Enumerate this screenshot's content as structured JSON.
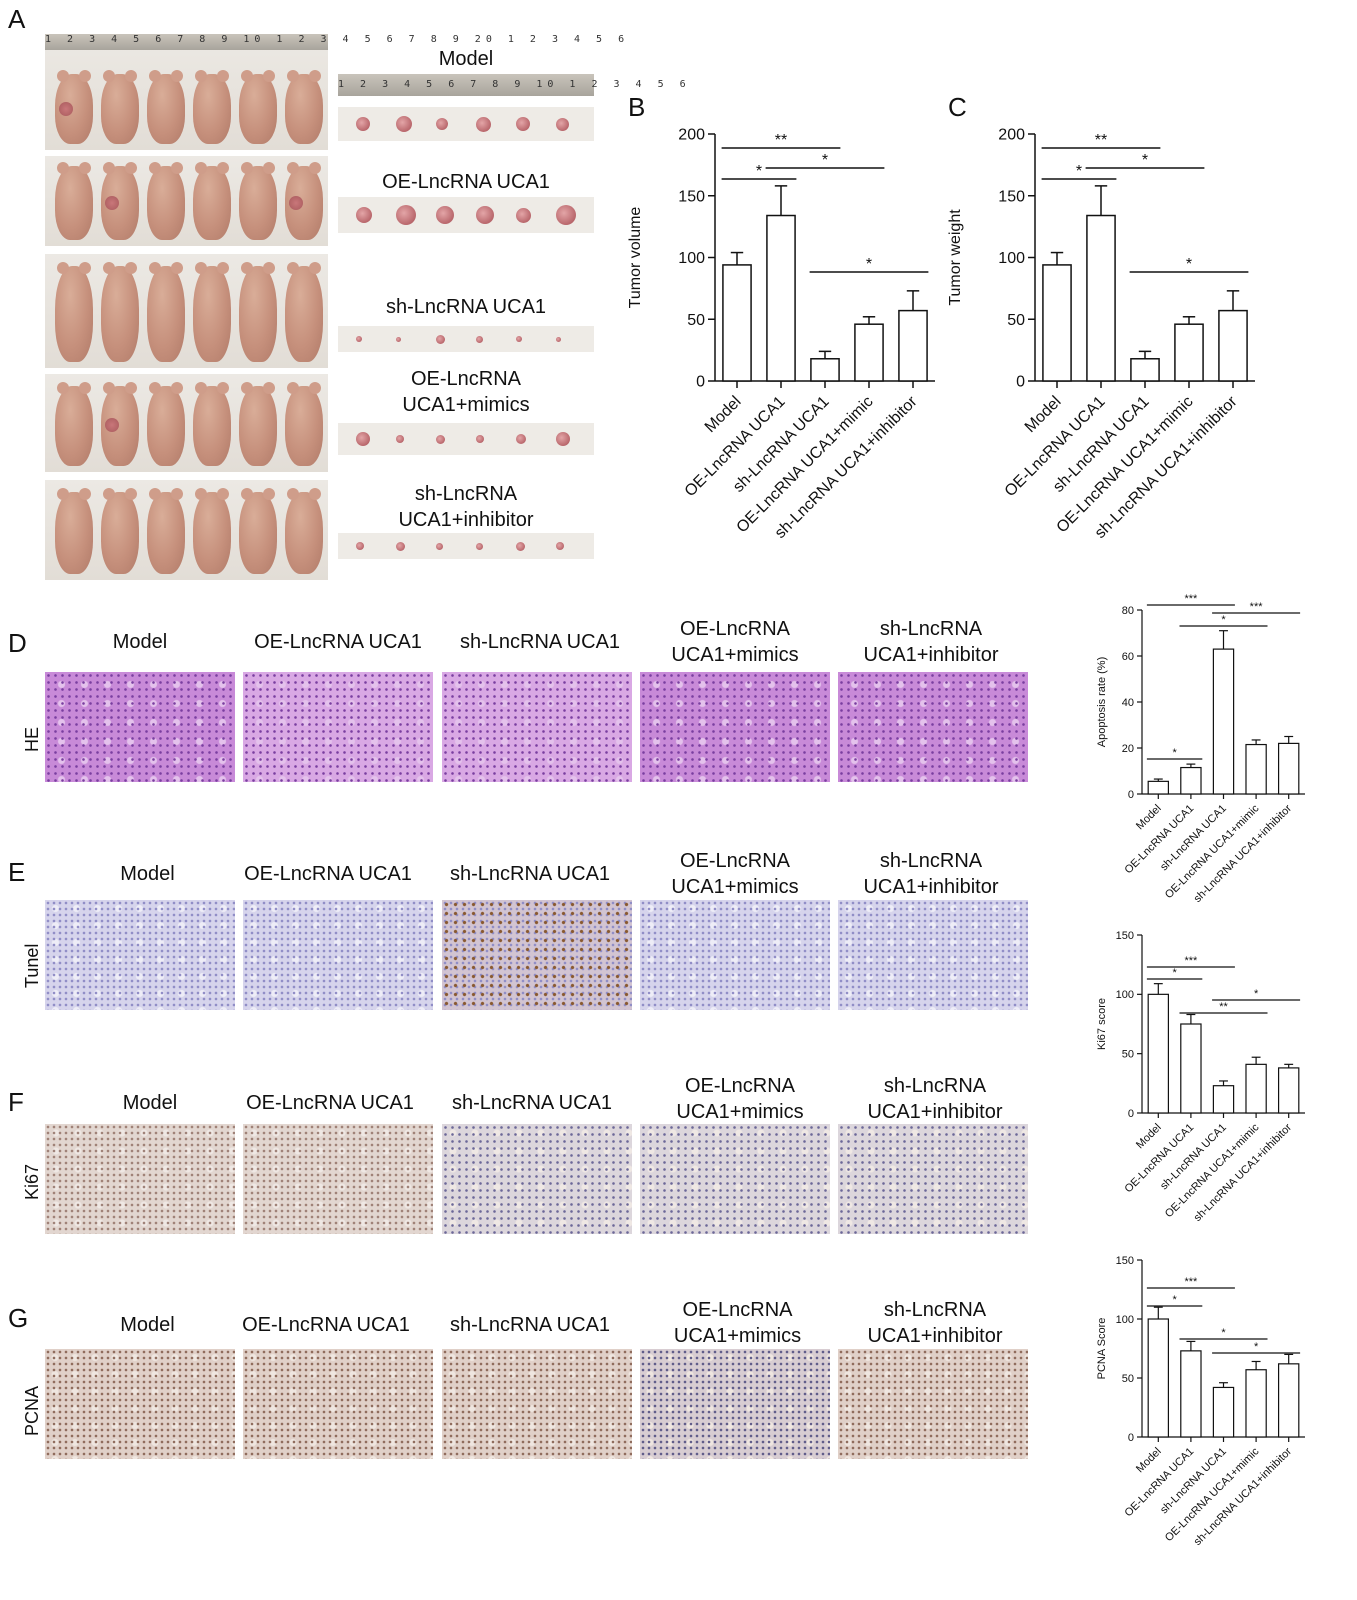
{
  "panels": {
    "A": "A",
    "B": "B",
    "C": "C",
    "D": "D",
    "E": "E",
    "F": "F",
    "G": "G"
  },
  "ruler_text": "1 2 3 4 5 6 7 8 9 10 1 2 3 4 5 6 7 8 9 20 1 2 3 4 5 6",
  "tray_ruler_text": "1 2 3 4 5 6 7 8 9 10 1 2 3 4 5 6",
  "groupA": {
    "model": "Model",
    "oe": "OE-LncRNA UCA1",
    "sh": "sh-LncRNA UCA1",
    "oe_mimics_1": "OE-LncRNA",
    "oe_mimics_2": "UCA1+mimics",
    "sh_inh_1": "sh-LncRNA",
    "sh_inh_2": "UCA1+inhibitor"
  },
  "col_titles": {
    "model": "Model",
    "oe": "OE-LncRNA UCA1",
    "sh": "sh-LncRNA UCA1",
    "oe_mimics_1": "OE-LncRNA",
    "oe_mimics_2": "UCA1+mimics",
    "sh_inh_1": "sh-LncRNA",
    "sh_inh_2": "UCA1+inhibitor"
  },
  "row_labels": {
    "he": "HE",
    "tunel": "Tunel",
    "ki67": "Ki67",
    "pcna": "PCNA"
  },
  "chart_data": [
    {
      "id": "B",
      "type": "bar",
      "categories": [
        "Model",
        "OE-LncRNA UCA1",
        "sh-LncRNA UCA1",
        "OE-LncRNA UCA1+mimic",
        "sh-LncRNA UCA1+inhibitor"
      ],
      "values": [
        94,
        134,
        18,
        46,
        57
      ],
      "errors": [
        10,
        24,
        6,
        6,
        16
      ],
      "ylabel": "Tumor volume",
      "ylim": [
        0,
        200
      ],
      "yticks": [
        0,
        50,
        100,
        150,
        200
      ],
      "significance": [
        {
          "from": 0,
          "to": 1,
          "label": "*"
        },
        {
          "from": 0,
          "to": 2,
          "label": "**"
        },
        {
          "from": 1,
          "to": 3,
          "label": "*"
        },
        {
          "from": 2,
          "to": 4,
          "label": "*"
        }
      ]
    },
    {
      "id": "C",
      "type": "bar",
      "categories": [
        "Model",
        "OE-LncRNA UCA1",
        "sh-LncRNA UCA1",
        "OE-LncRNA UCA1+mimic",
        "sh-LncRNA UCA1+inhibitor"
      ],
      "values": [
        94,
        134,
        18,
        46,
        57
      ],
      "errors": [
        10,
        24,
        6,
        6,
        16
      ],
      "ylabel": "Tumor weight",
      "ylim": [
        0,
        200
      ],
      "yticks": [
        0,
        50,
        100,
        150,
        200
      ],
      "significance": [
        {
          "from": 0,
          "to": 1,
          "label": "*"
        },
        {
          "from": 0,
          "to": 2,
          "label": "**"
        },
        {
          "from": 1,
          "to": 3,
          "label": "*"
        },
        {
          "from": 2,
          "to": 4,
          "label": "*"
        }
      ]
    },
    {
      "id": "D",
      "type": "bar",
      "categories": [
        "Model",
        "OE-LncRNA UCA1",
        "sh-LncRNA UCA1",
        "OE-LncRNA UCA1+mimic",
        "sh-LncRNA UCA1+inhibitor"
      ],
      "values": [
        5.5,
        11.5,
        63,
        21.5,
        22
      ],
      "errors": [
        1,
        1.5,
        8,
        2,
        3
      ],
      "ylabel": "Apoptosis rate (%)",
      "ylim": [
        0,
        80
      ],
      "yticks": [
        0,
        20,
        40,
        60,
        80
      ],
      "significance": [
        {
          "from": 0,
          "to": 1,
          "label": "*"
        },
        {
          "from": 0,
          "to": 2,
          "label": "***"
        },
        {
          "from": 1,
          "to": 3,
          "label": "*"
        },
        {
          "from": 2,
          "to": 4,
          "label": "***"
        }
      ]
    },
    {
      "id": "E",
      "type": "bar",
      "categories": [
        "Model",
        "OE-LncRNA UCA1",
        "sh-LncRNA UCA1",
        "OE-LncRNA UCA1+mimic",
        "sh-LncRNA UCA1+inhibitor"
      ],
      "values": [
        100,
        75,
        23,
        41,
        38
      ],
      "errors": [
        9,
        8,
        4,
        6,
        3
      ],
      "ylabel": "Ki67 score",
      "ylim": [
        0,
        150
      ],
      "yticks": [
        0,
        50,
        100,
        150
      ],
      "significance": [
        {
          "from": 0,
          "to": 1,
          "label": "*"
        },
        {
          "from": 0,
          "to": 2,
          "label": "***"
        },
        {
          "from": 1,
          "to": 3,
          "label": "**"
        },
        {
          "from": 2,
          "to": 4,
          "label": "*"
        }
      ]
    },
    {
      "id": "F",
      "type": "bar",
      "categories": [
        "Model",
        "OE-LncRNA UCA1",
        "sh-LncRNA UCA1",
        "OE-LncRNA UCA1+mimic",
        "sh-LncRNA UCA1+inhibitor"
      ],
      "values": [
        100,
        73,
        42,
        57,
        62
      ],
      "errors": [
        10,
        8,
        4,
        7,
        8
      ],
      "ylabel": "PCNA Score",
      "ylim": [
        0,
        150
      ],
      "yticks": [
        0,
        50,
        100,
        150
      ],
      "significance": [
        {
          "from": 0,
          "to": 1,
          "label": "*"
        },
        {
          "from": 0,
          "to": 2,
          "label": "***"
        },
        {
          "from": 1,
          "to": 3,
          "label": "*"
        },
        {
          "from": 2,
          "to": 4,
          "label": "*"
        }
      ]
    }
  ]
}
